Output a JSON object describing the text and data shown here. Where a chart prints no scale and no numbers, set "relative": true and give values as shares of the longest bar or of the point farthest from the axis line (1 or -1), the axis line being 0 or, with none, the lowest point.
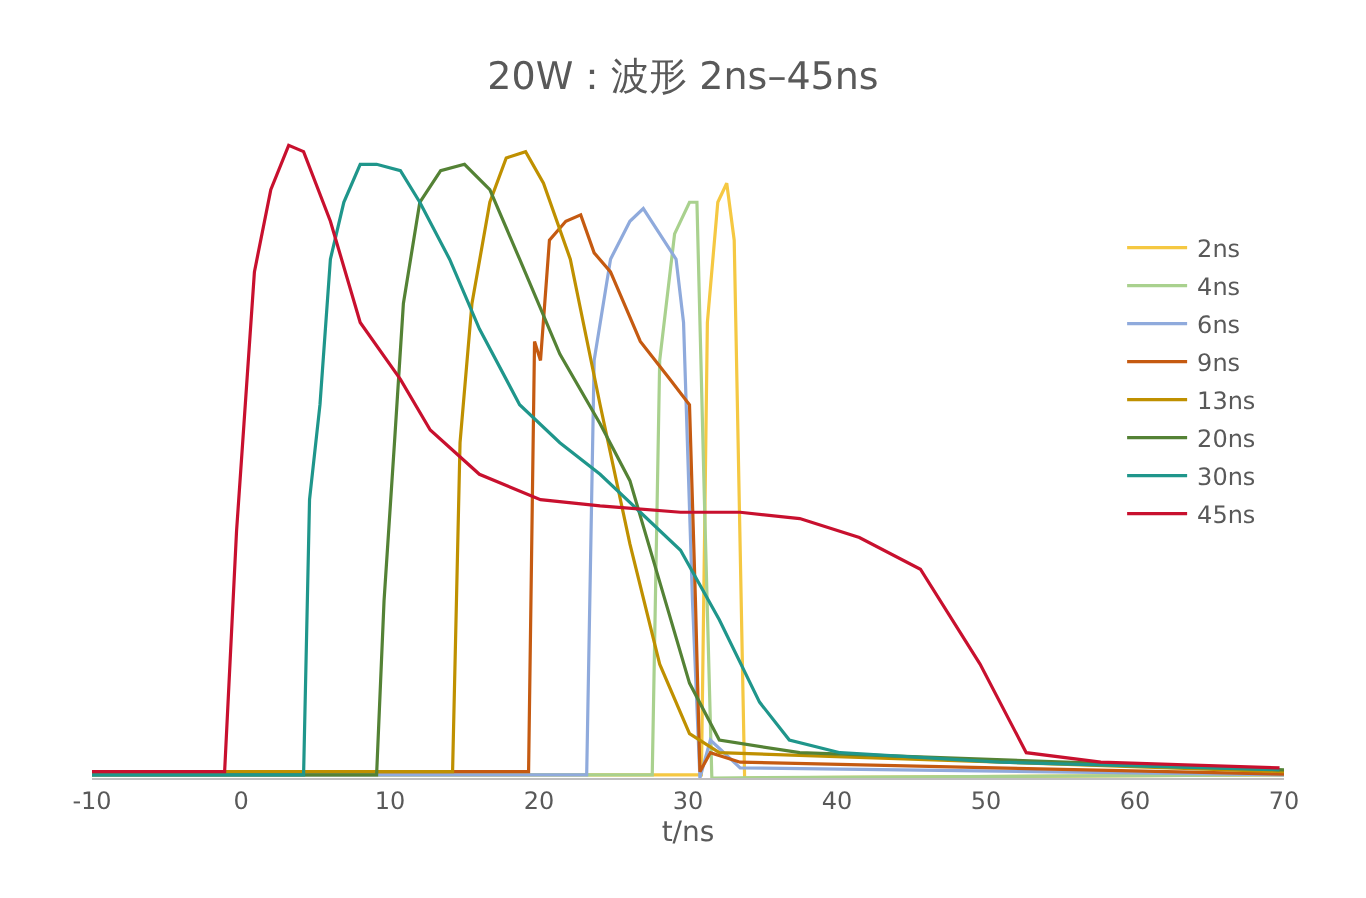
{
  "chart_data": {
    "type": "line",
    "title": "20W：波形 2ns–45ns",
    "xlabel": "t/ns",
    "relative": true,
    "xlim": [
      -10,
      70
    ],
    "xticks": [
      -10,
      0,
      10,
      20,
      30,
      40,
      50,
      60,
      70
    ],
    "legend": "right",
    "marker": "none",
    "line_style": "solid",
    "series": [
      {
        "name": "2ns",
        "color": "#f5c842",
        "x": [
          -10,
          30.9,
          31.3,
          32,
          32.6,
          33.1,
          33.8,
          70
        ],
        "values": [
          0.005,
          0.005,
          0.72,
          0.91,
          0.94,
          0.85,
          0.0,
          0.005
        ]
      },
      {
        "name": "4ns",
        "color": "#a9d18e",
        "x": [
          -10,
          27.6,
          28.1,
          29.1,
          30.1,
          30.6,
          31.1,
          31.6,
          70
        ],
        "values": [
          0.005,
          0.005,
          0.66,
          0.86,
          0.91,
          0.91,
          0.44,
          0.0,
          0.005
        ]
      },
      {
        "name": "6ns",
        "color": "#8faadc",
        "x": [
          -10,
          23.2,
          23.7,
          24.8,
          26.1,
          27,
          28.1,
          29.2,
          29.7,
          30.3,
          30.8,
          31.5,
          33.5,
          70
        ],
        "values": [
          0.005,
          0.005,
          0.66,
          0.82,
          0.88,
          0.9,
          0.86,
          0.82,
          0.72,
          0.28,
          0.0,
          0.06,
          0.016,
          0.005
        ]
      },
      {
        "name": "9ns",
        "color": "#c55a11",
        "x": [
          -10,
          19.3,
          19.7,
          20.1,
          20.7,
          21.8,
          22.8,
          23.7,
          24.8,
          26.8,
          28.8,
          30.1,
          30.5,
          30.8,
          31.5,
          33.5,
          70
        ],
        "values": [
          0.01,
          0.01,
          0.69,
          0.66,
          0.85,
          0.88,
          0.89,
          0.83,
          0.8,
          0.69,
          0.63,
          0.59,
          0.28,
          0.01,
          0.04,
          0.025,
          0.006
        ]
      },
      {
        "name": "13ns",
        "color": "#bf9000",
        "x": [
          -10,
          14.2,
          14.7,
          15.5,
          16.7,
          17.8,
          19.1,
          20.3,
          22.1,
          24.1,
          26.1,
          28.1,
          30.1,
          32.1,
          70
        ],
        "values": [
          0.01,
          0.01,
          0.53,
          0.75,
          0.91,
          0.98,
          0.99,
          0.94,
          0.82,
          0.59,
          0.37,
          0.18,
          0.07,
          0.04,
          0.01
        ]
      },
      {
        "name": "20ns",
        "color": "#548235",
        "x": [
          -10,
          9.1,
          9.6,
          10.3,
          10.9,
          12,
          13.4,
          15,
          16.7,
          18.7,
          21.4,
          24.1,
          26.1,
          28.1,
          30.1,
          32.1,
          37.5,
          70
        ],
        "values": [
          0.005,
          0.005,
          0.28,
          0.53,
          0.75,
          0.91,
          0.96,
          0.97,
          0.93,
          0.82,
          0.67,
          0.56,
          0.47,
          0.31,
          0.15,
          0.06,
          0.04,
          0.013
        ]
      },
      {
        "name": "30ns",
        "color": "#1f968b",
        "x": [
          -10,
          4.2,
          4.6,
          5.3,
          6,
          6.9,
          8,
          9.1,
          10.7,
          12,
          14,
          16,
          18.7,
          21.4,
          24.1,
          26.8,
          29.5,
          32.1,
          34.8,
          36.8,
          40.2,
          50.9,
          69.7
        ],
        "values": [
          0.005,
          0.005,
          0.44,
          0.59,
          0.82,
          0.91,
          0.97,
          0.97,
          0.96,
          0.91,
          0.82,
          0.71,
          0.59,
          0.53,
          0.48,
          0.42,
          0.36,
          0.25,
          0.12,
          0.06,
          0.04,
          0.025,
          0.013
        ]
      },
      {
        "name": "45ns",
        "color": "#c8102e",
        "x": [
          -10,
          -1.1,
          -0.3,
          0.2,
          0.9,
          2,
          3.2,
          4.2,
          6,
          8,
          10.7,
          12.7,
          16,
          20.1,
          24.1,
          29.5,
          33.5,
          37.5,
          41.5,
          45.6,
          49.6,
          52.7,
          57.7,
          69.7
        ],
        "values": [
          0.01,
          0.01,
          0.39,
          0.56,
          0.8,
          0.93,
          1.0,
          0.99,
          0.88,
          0.72,
          0.63,
          0.55,
          0.48,
          0.44,
          0.43,
          0.42,
          0.42,
          0.41,
          0.38,
          0.33,
          0.18,
          0.04,
          0.025,
          0.016
        ]
      }
    ]
  }
}
